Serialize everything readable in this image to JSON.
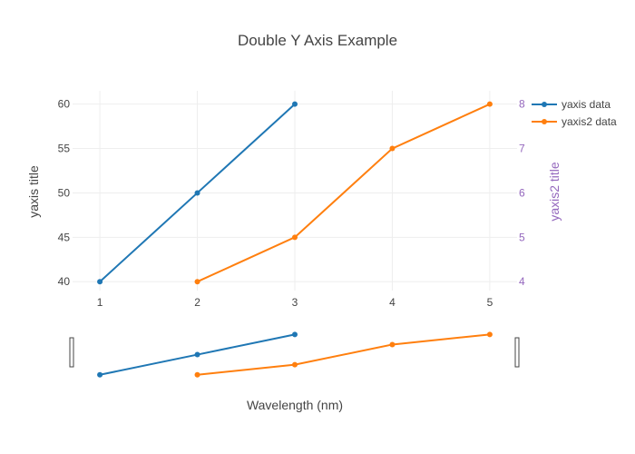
{
  "chart_data": {
    "type": "line",
    "title": "Double Y Axis Example",
    "xlabel": "Wavelength (nm)",
    "x_ticks": [
      "1",
      "2",
      "3",
      "4",
      "5"
    ],
    "xlim": [
      0.72,
      5.28
    ],
    "y_axis": {
      "title": "yaxis title",
      "range": [
        39,
        61.5
      ],
      "ticks": [
        "40",
        "45",
        "50",
        "55",
        "60"
      ],
      "color": "#444444"
    },
    "y_axis2": {
      "title": "yaxis2 title",
      "range": [
        3.8,
        8.3
      ],
      "ticks": [
        "4",
        "5",
        "6",
        "7",
        "8"
      ],
      "color": "#9467bd"
    },
    "series": [
      {
        "name": "yaxis data",
        "axis": "y",
        "color": "#1f77b4",
        "x": [
          1,
          2,
          3
        ],
        "y": [
          40,
          50,
          60
        ]
      },
      {
        "name": "yaxis2 data",
        "axis": "y2",
        "color": "#ff7f0e",
        "x": [
          2,
          3,
          4,
          5
        ],
        "y": [
          4,
          5,
          7,
          8
        ]
      }
    ],
    "grid": true,
    "legend_position": "top-right",
    "range_slider": true
  }
}
